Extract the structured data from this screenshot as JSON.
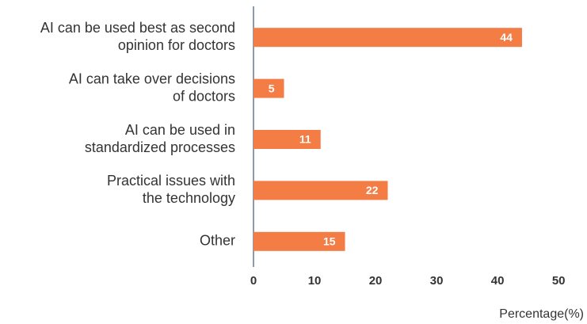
{
  "chart_data": {
    "type": "barh",
    "categories": [
      [
        "AI can be used best as second",
        "opinion for doctors"
      ],
      [
        "AI can take over decisions",
        "of doctors"
      ],
      [
        "AI can be used in",
        "standardized processes"
      ],
      [
        "Practical issues with",
        "the technology"
      ],
      [
        "Other"
      ]
    ],
    "values": [
      44,
      5,
      11,
      22,
      15
    ],
    "color": "#f47c45",
    "xlim": [
      0,
      54
    ],
    "xticks": [
      0,
      10,
      20,
      30,
      40,
      50
    ],
    "xlabel": "Percentage(%)"
  }
}
